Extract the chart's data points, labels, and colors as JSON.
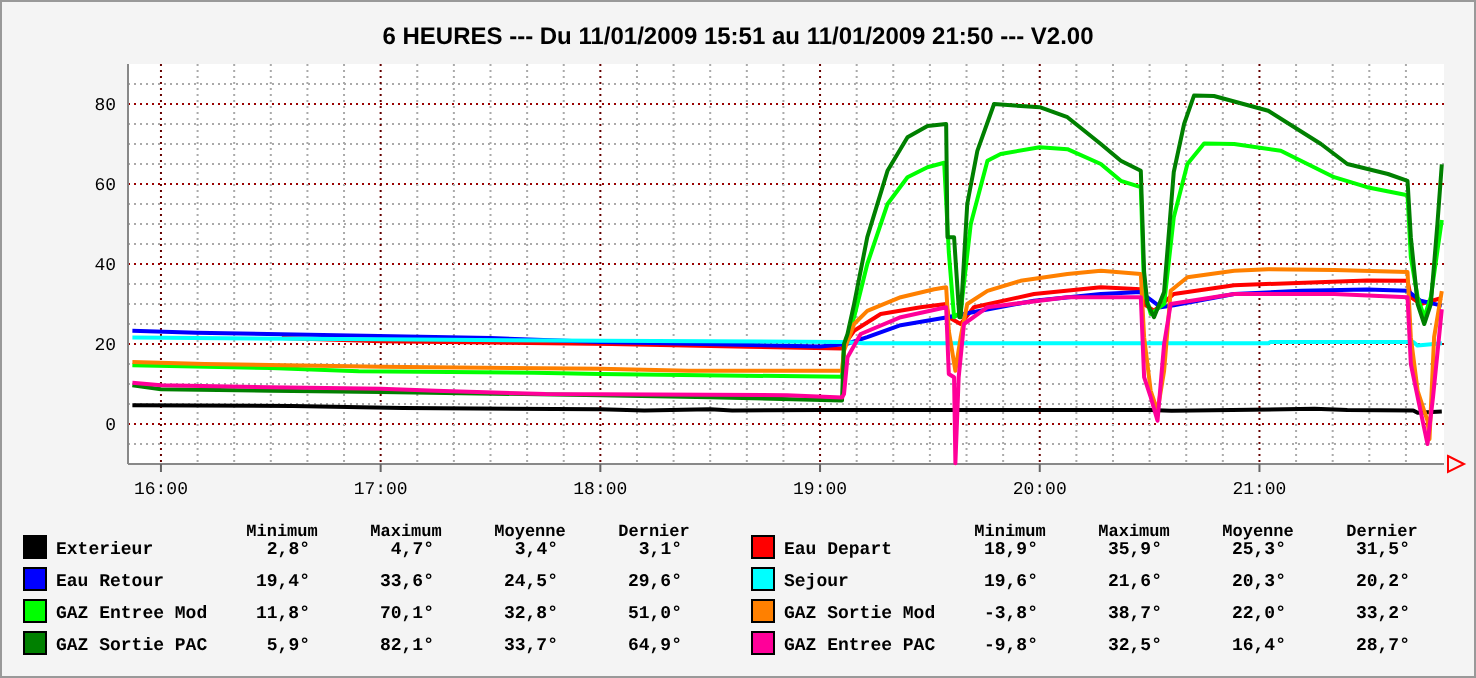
{
  "chart_data": {
    "type": "line",
    "title": "6 HEURES --- Du 11/01/2009 15:51 au 11/01/2009 21:50 --- V2.00",
    "xlim": [
      15.85,
      21.84
    ],
    "xticks": [
      {
        "value": 16,
        "label": "16:00"
      },
      {
        "value": 16.1667,
        "label": null
      },
      {
        "value": 16.3333,
        "label": null
      },
      {
        "value": 16.5,
        "label": null
      },
      {
        "value": 16.6667,
        "label": null
      },
      {
        "value": 16.8333,
        "label": null
      },
      {
        "value": 17,
        "label": "17:00"
      },
      {
        "value": 17.1667,
        "label": null
      },
      {
        "value": 17.3333,
        "label": null
      },
      {
        "value": 17.5,
        "label": null
      },
      {
        "value": 17.6667,
        "label": null
      },
      {
        "value": 17.8333,
        "label": null
      },
      {
        "value": 18,
        "label": "18:00"
      },
      {
        "value": 18.1667,
        "label": null
      },
      {
        "value": 18.3333,
        "label": null
      },
      {
        "value": 18.5,
        "label": null
      },
      {
        "value": 18.6667,
        "label": null
      },
      {
        "value": 18.8333,
        "label": null
      },
      {
        "value": 19,
        "label": "19:00"
      },
      {
        "value": 19.1667,
        "label": null
      },
      {
        "value": 19.3333,
        "label": null
      },
      {
        "value": 19.5,
        "label": null
      },
      {
        "value": 19.6667,
        "label": null
      },
      {
        "value": 19.8333,
        "label": null
      },
      {
        "value": 20,
        "label": "20:00"
      },
      {
        "value": 20.1667,
        "label": null
      },
      {
        "value": 20.3333,
        "label": null
      },
      {
        "value": 20.5,
        "label": null
      },
      {
        "value": 20.6667,
        "label": null
      },
      {
        "value": 20.8333,
        "label": null
      },
      {
        "value": 21,
        "label": "21:00"
      },
      {
        "value": 21.1667,
        "label": null
      },
      {
        "value": 21.3333,
        "label": null
      },
      {
        "value": 21.5,
        "label": null
      },
      {
        "value": 21.6667,
        "label": null
      }
    ],
    "ylim": [
      -10,
      90
    ],
    "yticks": [
      {
        "value": -5,
        "label": null
      },
      0,
      {
        "value": 5,
        "label": null
      },
      {
        "value": 10,
        "label": null
      },
      {
        "value": 15,
        "label": null
      },
      20,
      {
        "value": 25,
        "label": null
      },
      {
        "value": 30,
        "label": null
      },
      {
        "value": 35,
        "label": null
      },
      40,
      {
        "value": 45,
        "label": null
      },
      {
        "value": 50,
        "label": null
      },
      {
        "value": 55,
        "label": null
      },
      60,
      {
        "value": 65,
        "label": null
      },
      {
        "value": 70,
        "label": null
      },
      {
        "value": 75,
        "label": null
      },
      80,
      {
        "value": 85,
        "label": null
      }
    ],
    "grid": true,
    "legend": "bottom",
    "series": [
      {
        "name": "Exterieur",
        "color": "#000000",
        "x": [
          15.87,
          16.6,
          17.1,
          18.0,
          18.2,
          18.5,
          18.6,
          19.0,
          20.5,
          20.6,
          21.25,
          21.4,
          21.7,
          21.72,
          21.83
        ],
        "values": [
          4.7,
          4.5,
          4.0,
          3.7,
          3.4,
          3.7,
          3.4,
          3.5,
          3.5,
          3.3,
          3.8,
          3.5,
          3.4,
          2.8,
          3.1
        ]
      },
      {
        "name": "Eau Depart",
        "color": "#ff0000",
        "x": [
          16.55,
          17.0,
          18.05,
          18.67,
          19.1,
          19.109,
          19.155,
          19.276,
          19.458,
          19.574,
          19.586,
          19.64,
          19.7,
          19.974,
          20.278,
          20.46,
          20.475,
          20.52,
          20.61,
          20.885,
          21.49,
          21.674,
          21.689,
          21.734,
          21.83
        ],
        "values": [
          21.5,
          20.7,
          20.0,
          19.3,
          18.9,
          19.7,
          23.3,
          27.5,
          29.2,
          30,
          26.7,
          25,
          29.2,
          32.5,
          34.2,
          33.7,
          30,
          28.3,
          32.5,
          34.7,
          35.9,
          35.8,
          31.7,
          30,
          31.5
        ]
      },
      {
        "name": "Eau Retour",
        "color": "#0000ff",
        "x": [
          15.87,
          16.16,
          16.8,
          17.5,
          18.0,
          19.0,
          19.12,
          19.215,
          19.367,
          19.58,
          19.7,
          19.974,
          20.278,
          20.46,
          20.49,
          20.55,
          20.61,
          20.885,
          21.19,
          21.49,
          21.674,
          21.734,
          21.83
        ],
        "values": [
          23.3,
          22.8,
          22.2,
          21.5,
          20.5,
          19.4,
          20,
          21.7,
          24.7,
          26.7,
          28,
          30.8,
          32.5,
          33,
          31.7,
          29.2,
          29.7,
          32.5,
          33.3,
          33.6,
          33.3,
          30.8,
          29.6
        ]
      },
      {
        "name": "Sejour",
        "color": "#00ffff",
        "x": [
          15.87,
          17.0,
          18.0,
          19.1,
          19.2,
          21.04,
          21.05,
          21.7,
          21.72,
          21.83
        ],
        "values": [
          21.6,
          21.2,
          20.8,
          20.5,
          20.2,
          20.2,
          20.5,
          20.5,
          19.6,
          20.2
        ]
      },
      {
        "name": "GAZ Entree Mod",
        "color": "#00ff00",
        "x": [
          15.87,
          16.5,
          16.9,
          17.7,
          18.0,
          19.1,
          19.109,
          19.155,
          19.215,
          19.307,
          19.398,
          19.489,
          19.565,
          19.586,
          19.61,
          19.64,
          19.686,
          19.762,
          19.822,
          20.0,
          20.126,
          20.278,
          20.369,
          20.46,
          20.475,
          20.505,
          20.566,
          20.61,
          20.672,
          20.748,
          20.885,
          21.097,
          21.34,
          21.49,
          21.674,
          21.689,
          21.72,
          21.75,
          21.78,
          21.81,
          21.83
        ],
        "values": [
          14.7,
          14.0,
          13.2,
          12.8,
          12.5,
          11.8,
          19.2,
          26.7,
          40,
          55,
          61.7,
          64.2,
          65.3,
          43,
          26.7,
          28,
          50,
          65.8,
          67.5,
          69.2,
          68.7,
          65,
          60.8,
          59.2,
          33.3,
          27.5,
          30,
          51.7,
          65,
          70.1,
          70,
          68.3,
          61.7,
          59.2,
          57.2,
          41.7,
          31.7,
          26.7,
          31.7,
          43.3,
          51.0
        ]
      },
      {
        "name": "GAZ Sortie Mod",
        "color": "#ff8000",
        "x": [
          15.87,
          16.2,
          17.0,
          18.0,
          18.4,
          19.1,
          19.109,
          19.155,
          19.215,
          19.367,
          19.52,
          19.574,
          19.586,
          19.616,
          19.64,
          19.67,
          19.762,
          19.913,
          20.126,
          20.278,
          20.46,
          20.475,
          20.505,
          20.536,
          20.566,
          20.596,
          20.672,
          20.885,
          21.04,
          21.34,
          21.674,
          21.689,
          21.72,
          21.765,
          21.774,
          21.795,
          21.83
        ],
        "values": [
          15.5,
          15.0,
          14.3,
          13.8,
          13.3,
          13.3,
          18.3,
          25,
          28.3,
          31.7,
          33.7,
          34.2,
          23.3,
          13.3,
          21.7,
          30,
          33.3,
          35.8,
          37.5,
          38.3,
          37.5,
          21.7,
          8.3,
          3.3,
          13.3,
          33.3,
          36.7,
          38.3,
          38.7,
          38.5,
          38,
          21.7,
          8.3,
          0.8,
          -3.8,
          21.7,
          33.2
        ]
      },
      {
        "name": "GAZ Sortie PAC",
        "color": "#008000",
        "x": [
          15.87,
          16.0,
          16.5,
          17.0,
          18.0,
          18.5,
          19.1,
          19.109,
          19.125,
          19.155,
          19.215,
          19.307,
          19.398,
          19.489,
          19.574,
          19.58,
          19.61,
          19.634,
          19.64,
          19.67,
          19.716,
          19.792,
          19.913,
          20.0,
          20.126,
          20.278,
          20.369,
          20.46,
          20.475,
          20.49,
          20.52,
          20.566,
          20.61,
          20.657,
          20.702,
          20.793,
          21.04,
          21.28,
          21.4,
          21.585,
          21.674,
          21.689,
          21.72,
          21.75,
          21.78,
          21.81,
          21.83
        ],
        "values": [
          9.7,
          8.7,
          8.3,
          8.0,
          7.2,
          6.7,
          5.9,
          20,
          22.5,
          30,
          46.7,
          63.3,
          71.7,
          74.5,
          75,
          46.7,
          46.7,
          26.7,
          26.7,
          55,
          68.3,
          80,
          79.5,
          79.2,
          76.7,
          70,
          65.8,
          63.3,
          38,
          30,
          26.7,
          33,
          63,
          75,
          82.1,
          82,
          78.3,
          70,
          65,
          62.5,
          60.8,
          46.7,
          30,
          25,
          30,
          50,
          64.9
        ]
      },
      {
        "name": "GAZ Entree PAC",
        "color": "#ff0099",
        "x": [
          15.87,
          16.0,
          16.5,
          17.0,
          17.25,
          17.75,
          18.85,
          19.1,
          19.109,
          19.125,
          19.185,
          19.367,
          19.574,
          19.586,
          19.61,
          19.616,
          19.631,
          19.655,
          19.762,
          20.126,
          20.46,
          20.475,
          20.505,
          20.536,
          20.566,
          20.596,
          20.885,
          21.34,
          21.674,
          21.689,
          21.72,
          21.765,
          21.79,
          21.83
        ],
        "values": [
          10.3,
          9.7,
          9.2,
          8.8,
          8.3,
          7.5,
          7.2,
          6.6,
          7.5,
          16.7,
          22.5,
          26.7,
          29.2,
          12.5,
          11.7,
          -9.8,
          11.7,
          25,
          29.2,
          31.7,
          31.7,
          11.7,
          6.7,
          0.8,
          20,
          30,
          32.5,
          32.5,
          31.7,
          15,
          6.7,
          -5,
          6.7,
          28.7
        ]
      }
    ],
    "annotations": [
      "Minimum",
      "Maximum",
      "Moyenne",
      "Dernier",
      "2,8°",
      "4,7°",
      "3,4°",
      "3,1°",
      "18,9°",
      "35,9°",
      "25,3°",
      "31,5°",
      "19,4°",
      "33,6°",
      "24,5°",
      "29,6°",
      "19,6°",
      "21,6°",
      "20,3°",
      "20,2°",
      "11,8°",
      "70,1°",
      "32,8°",
      "51,0°",
      "-3,8°",
      "38,7°",
      "22,0°",
      "33,2°",
      "5,9°",
      "82,1°",
      "33,7°",
      "64,9°",
      "-9,8°",
      "32,5°",
      "16,4°",
      "28,7°"
    ]
  }
}
